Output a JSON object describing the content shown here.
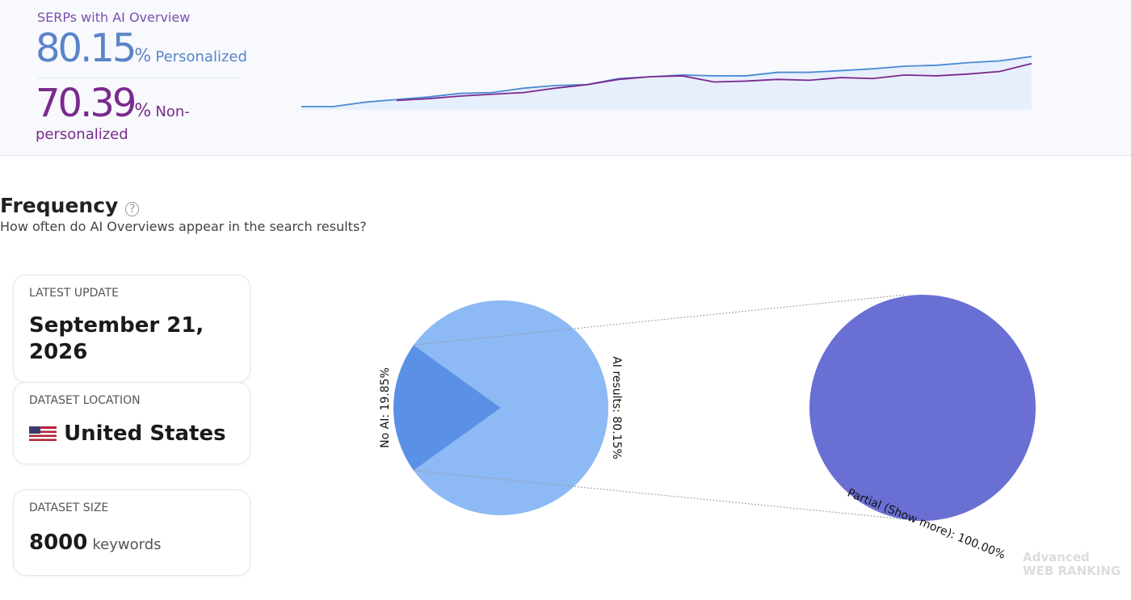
{
  "header": {
    "title": "SERPs with AI Overview",
    "personalized": {
      "value": 80.15,
      "unit": "%",
      "label": "Personalized"
    },
    "non_personalized": {
      "value": 70.39,
      "unit": "%",
      "label": "Non-personalized"
    }
  },
  "chart_data": [
    {
      "type": "line",
      "series": [
        {
          "name": "Personalized",
          "color": "#4a8ad6",
          "values": [
            10.6,
            10.6,
            16.7,
            20.4,
            24.0,
            28.9,
            30.1,
            36.2,
            39.9,
            41.1,
            49.6,
            52.1,
            54.5,
            53.3,
            53.3,
            58.2,
            58.2,
            60.6,
            63.1,
            66.7,
            68.0,
            71.6,
            74.1,
            80.15
          ]
        },
        {
          "name": "Non-personalized",
          "color": "#7a2a8e",
          "values": [
            null,
            null,
            null,
            19.2,
            21.6,
            25.2,
            27.7,
            30.1,
            36.2,
            41.1,
            48.4,
            52.1,
            53.3,
            44.8,
            46.0,
            48.4,
            47.2,
            50.9,
            49.6,
            54.5,
            53.3,
            55.8,
            59.4,
            70.39
          ]
        }
      ]
    },
    {
      "type": "pie",
      "categories": [
        "No AI",
        "AI results"
      ],
      "values": [
        19.85,
        80.15
      ],
      "value_labels": [
        "No AI: 19.85%",
        "AI results: 80.15%"
      ],
      "colors": [
        "#5a90e6",
        "#8dbaf5"
      ]
    },
    {
      "type": "pie",
      "categories": [
        "Partial (Show more)"
      ],
      "values": [
        100.0
      ],
      "value_labels": [
        "Partial (Show more): 100.00%"
      ],
      "colors": [
        "#6a6fd4"
      ]
    }
  ],
  "section": {
    "title": "Frequency",
    "subtitle": "How often do AI Overviews appear in the search results?"
  },
  "cards": [
    {
      "label": "LATEST UPDATE",
      "value": "September 21, 2026"
    },
    {
      "label": "DATASET LOCATION",
      "value": "United States"
    },
    {
      "label": "DATASET SIZE",
      "value": 8000,
      "unit": "keywords"
    }
  ],
  "watermark": {
    "line1": "Advanced",
    "line2": "WEB RANKING"
  }
}
